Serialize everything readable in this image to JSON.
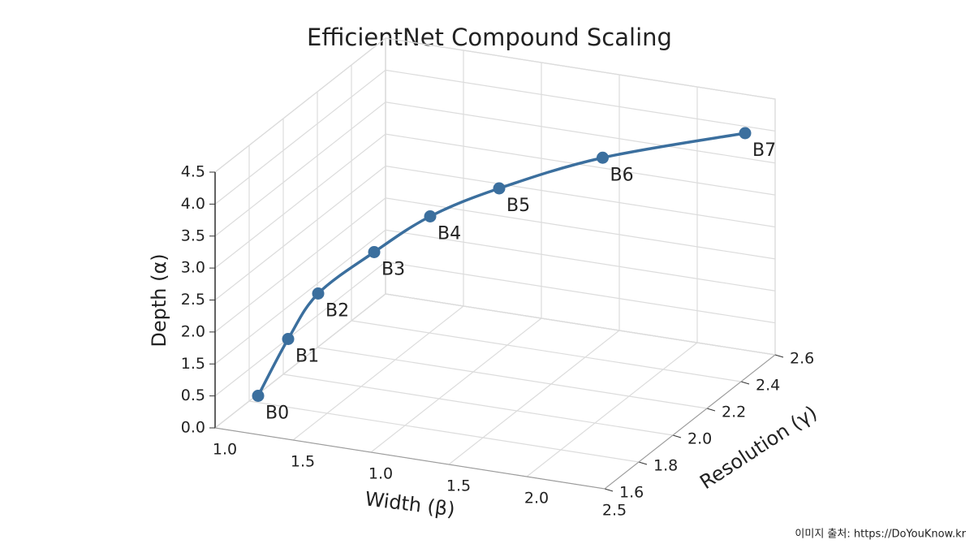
{
  "chart_data": {
    "type": "line3d",
    "title": "EfficientNet Compound Scaling",
    "xlabel": "Width (β)",
    "ylabel": "Depth (α)",
    "zlabel": "Resolution (γ)",
    "xlim": [
      1.0,
      2.5
    ],
    "ylim": [
      0,
      4.5
    ],
    "zlim": [
      1.6,
      2.6
    ],
    "xticks": [
      {
        "value": 1.0,
        "label": "1.0"
      },
      1.5,
      {
        "value": 1.0,
        "label": "1.0"
      },
      1.5,
      {
        "value": 2.0,
        "label": "2.0"
      },
      2.5
    ],
    "yticks": [
      {
        "value": 0,
        "label": "0.0"
      },
      0.5,
      1.5,
      {
        "value": 2.0,
        "label": "2.0"
      },
      2.5,
      {
        "value": 3.0,
        "label": "3.0"
      },
      3.5,
      {
        "value": 4.0,
        "label": "4.0"
      },
      4.5
    ],
    "zticks": [
      1.6,
      1.8,
      {
        "value": 2.0,
        "label": "2.0"
      },
      2.2,
      2.4,
      2.6
    ],
    "grid": true,
    "series": [
      {
        "color": "#3b6f9e",
        "point_labels": [
          "B0",
          "B1",
          "B2",
          "B3",
          "B4",
          "B5",
          "B6",
          "B7"
        ],
        "x": [
          1.1,
          1.15,
          1.2,
          1.35,
          1.5,
          1.7,
          2.0,
          2.45
        ],
        "z": [
          1.7,
          1.8,
          1.9,
          2.0,
          2.1,
          2.2,
          2.35,
          2.5
        ],
        "values": [
          0.4,
          1.2,
          1.8,
          2.4,
          2.9,
          3.3,
          3.7,
          4.1
        ]
      }
    ],
    "source": "이미지 출처: https://DoYouKnow.kr"
  }
}
